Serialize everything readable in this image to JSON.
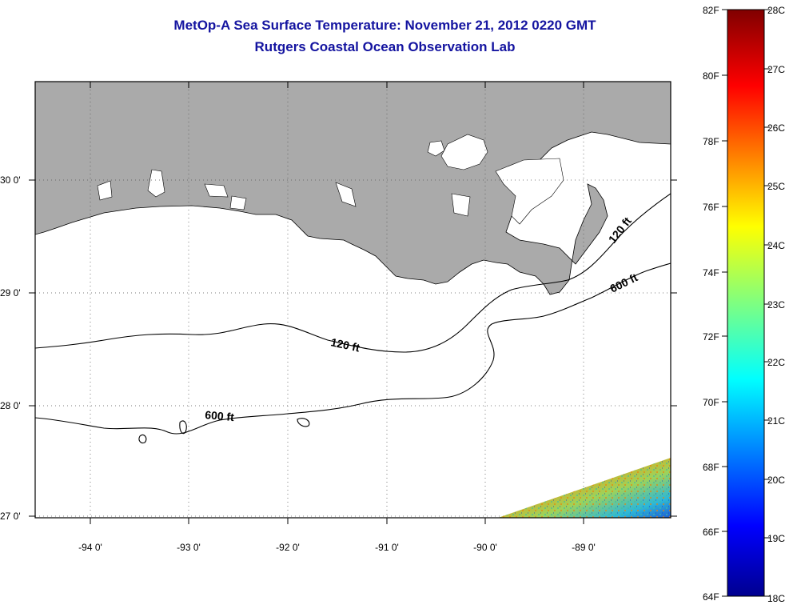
{
  "title": {
    "line1": "MetOp-A Sea Surface Temperature:  November 21, 2012 0220 GMT",
    "line2": "Rutgers Coastal Ocean Observation Lab"
  },
  "map": {
    "latitude_labels": [
      "30 0'",
      "29 0'",
      "28 0'",
      "27 0'"
    ],
    "longitude_labels": [
      "-94 0'",
      "-93 0'",
      "-92 0'",
      "-91 0'",
      "-90 0'",
      "-89 0'"
    ],
    "contour_labels": [
      "120 ft",
      "120 ft",
      "600 ft",
      "600 ft"
    ],
    "colors": {
      "land": "#aaaaaa",
      "water": "#ffffff",
      "contour": "#000000",
      "grid": "#555555"
    }
  },
  "colorbar": {
    "fahrenheit_labels": [
      "82F",
      "80F",
      "78F",
      "76F",
      "74F",
      "72F",
      "70F",
      "68F",
      "66F",
      "64F"
    ],
    "celsius_labels": [
      "28C",
      "27C",
      "26C",
      "25C",
      "24C",
      "23C",
      "22C",
      "21C",
      "20C",
      "19C",
      "18C"
    ],
    "colormap": "jet"
  }
}
